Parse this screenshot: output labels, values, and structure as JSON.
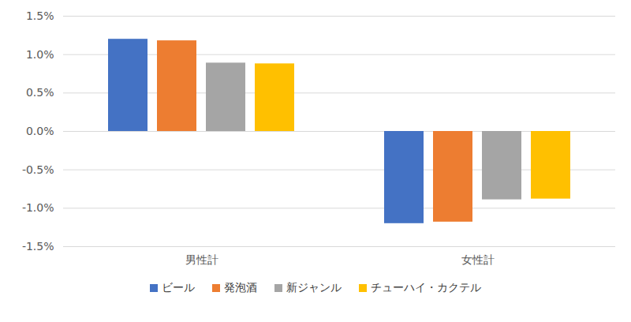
{
  "chart_data": {
    "type": "bar",
    "categories": [
      "男性計",
      "女性計"
    ],
    "series": [
      {
        "name": "ビール",
        "color": "#4472c4",
        "values": [
          1.2,
          -1.2
        ]
      },
      {
        "name": "発泡酒",
        "color": "#ed7d31",
        "values": [
          1.18,
          -1.18
        ]
      },
      {
        "name": "新ジャンル",
        "color": "#a5a5a5",
        "values": [
          0.89,
          -0.89
        ]
      },
      {
        "name": "チューハイ・カクテル",
        "color": "#ffc000",
        "values": [
          0.88,
          -0.88
        ]
      }
    ],
    "ylim": [
      -1.5,
      1.5
    ],
    "yticks": [
      {
        "value": -1.5,
        "label": "-1.5%"
      },
      {
        "value": -1.0,
        "label": "-1.0%"
      },
      {
        "value": -0.5,
        "label": "-0.5%"
      },
      {
        "value": 0,
        "label": "0.0%"
      },
      {
        "value": 0.5,
        "label": "0.5%"
      },
      {
        "value": 1.0,
        "label": "1.0%"
      },
      {
        "value": 1.5,
        "label": "1.5%"
      }
    ],
    "grid": true,
    "legend": "bottom"
  }
}
